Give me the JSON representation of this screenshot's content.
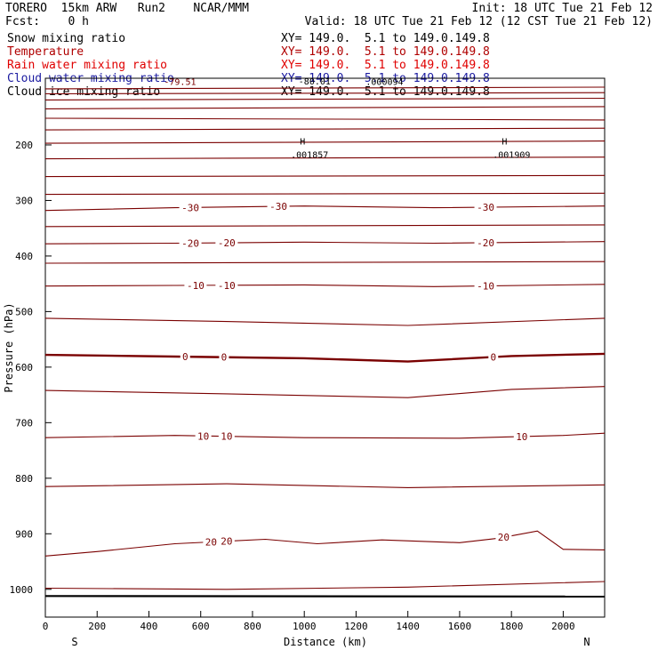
{
  "header": {
    "model": "TORERO  15km ARW   Run2    NCAR/MMM",
    "init": "Init: 18 UTC Tue 21 Feb 12",
    "fcst": "Fcst:    0 h",
    "valid": "Valid: 18 UTC Tue 21 Feb 12 (12 CST Tue 21 Feb 12)"
  },
  "fields": [
    {
      "name": "Snow mixing ratio",
      "xy": "",
      "color": "#000000"
    },
    {
      "name": "Temperature",
      "xy": "XY= 149.0.  5.1 to 149.0.149.8",
      "color": "#b00000"
    },
    {
      "name": "Rain water mixing ratio",
      "xy": "XY= 149.0.  5.1 to 149.0.149.8",
      "color": "#e00000"
    },
    {
      "name": "Cloud water mixing ratio",
      "xy": "XY= 149.0.  5.1 to 149.0.149.8",
      "color": "#1a1aa0"
    },
    {
      "name": "Cloud ice mixing ratio",
      "xy": "XY= 149.0.  5.1 to 149.0.149.8",
      "color": "#000000"
    }
  ],
  "snow_xy": "XY= 149.0.  5.1 to 149.0.149.8",
  "chart_data": {
    "type": "line",
    "xlabel": "Distance (km)",
    "ylabel": "Pressure (hPa)",
    "xlim": [
      0,
      2160
    ],
    "ylim": [
      1050,
      80
    ],
    "xticks": [
      0,
      200,
      400,
      600,
      800,
      1000,
      1200,
      1400,
      1600,
      1800,
      2000
    ],
    "yticks": [
      200,
      300,
      400,
      500,
      600,
      700,
      800,
      900,
      1000
    ],
    "x_end_labels": {
      "left": "S",
      "right": "N"
    },
    "contour_color": "#7a0000",
    "top_label": "-79.51",
    "top_label2": "-80.01",
    "top_label3": ".000094",
    "highs": [
      {
        "label": "H",
        "value": ".001857",
        "x": 1000,
        "p": 222
      },
      {
        "label": "H",
        "value": ".001909",
        "x": 1780,
        "p": 222
      }
    ],
    "isotherms": [
      {
        "level": -30,
        "labels": [
          "-30",
          "-30",
          "-30"
        ],
        "x": [
          0,
          500,
          1000,
          1500,
          2160
        ],
        "p": [
          318,
          313,
          310,
          313,
          310
        ]
      },
      {
        "level": -20,
        "labels": [
          "-20",
          "-20",
          "-20"
        ],
        "x": [
          0,
          500,
          1000,
          1500,
          2160
        ],
        "p": [
          378,
          377,
          375,
          377,
          374
        ]
      },
      {
        "level": -10,
        "labels": [
          "-10",
          "-10",
          "-10"
        ],
        "x": [
          0,
          500,
          1000,
          1500,
          2160
        ],
        "p": [
          454,
          453,
          452,
          455,
          451
        ]
      },
      {
        "level": 0,
        "labels": [
          "0",
          "0",
          "0"
        ],
        "x": [
          0,
          500,
          1000,
          1400,
          1800,
          2160
        ],
        "p": [
          578,
          581,
          584,
          590,
          580,
          576
        ]
      },
      {
        "level": 10,
        "labels": [
          "10",
          "10",
          "10"
        ],
        "x": [
          0,
          500,
          1000,
          1600,
          2000,
          2160
        ],
        "p": [
          727,
          723,
          727,
          728,
          723,
          719
        ]
      },
      {
        "level": 20,
        "labels": [
          "20",
          "20",
          "20"
        ],
        "x": [
          0,
          200,
          500,
          850,
          1050,
          1300,
          1600,
          1750,
          1900,
          2000,
          2160
        ],
        "p": [
          940,
          932,
          918,
          910,
          918,
          911,
          916,
          908,
          895,
          928,
          929
        ]
      }
    ],
    "other_isolines": [
      {
        "x": [
          0,
          2160
        ],
        "p": [
          99,
          96
        ]
      },
      {
        "x": [
          0,
          2160
        ],
        "p": [
          108,
          106
        ]
      },
      {
        "x": [
          0,
          2160
        ],
        "p": [
          119,
          116
        ]
      },
      {
        "x": [
          0,
          2160
        ],
        "p": [
          135,
          131
        ]
      },
      {
        "x": [
          0,
          2160
        ],
        "p": [
          152,
          155
        ]
      },
      {
        "x": [
          0,
          2160
        ],
        "p": [
          173,
          170
        ]
      },
      {
        "x": [
          0,
          2160
        ],
        "p": [
          197,
          193
        ]
      },
      {
        "x": [
          0,
          2160
        ],
        "p": [
          225,
          222
        ]
      },
      {
        "x": [
          0,
          2160
        ],
        "p": [
          257,
          255
        ]
      },
      {
        "x": [
          0,
          2160
        ],
        "p": [
          289,
          287
        ]
      },
      {
        "x": [
          0,
          2160
        ],
        "p": [
          347,
          344
        ]
      },
      {
        "x": [
          0,
          2160
        ],
        "p": [
          413,
          410
        ]
      },
      {
        "x": [
          0,
          700,
          1400,
          2160
        ],
        "p": [
          512,
          518,
          525,
          512
        ]
      },
      {
        "x": [
          0,
          700,
          1400,
          1800,
          2160
        ],
        "p": [
          642,
          648,
          655,
          640,
          635
        ]
      },
      {
        "x": [
          0,
          700,
          1400,
          2160
        ],
        "p": [
          815,
          810,
          817,
          812
        ]
      },
      {
        "x": [
          0,
          700,
          1400,
          2160
        ],
        "p": [
          998,
          1000,
          996,
          986
        ]
      }
    ],
    "ground": {
      "x": [
        0,
        2160
      ],
      "p": [
        1012,
        1013
      ]
    }
  }
}
